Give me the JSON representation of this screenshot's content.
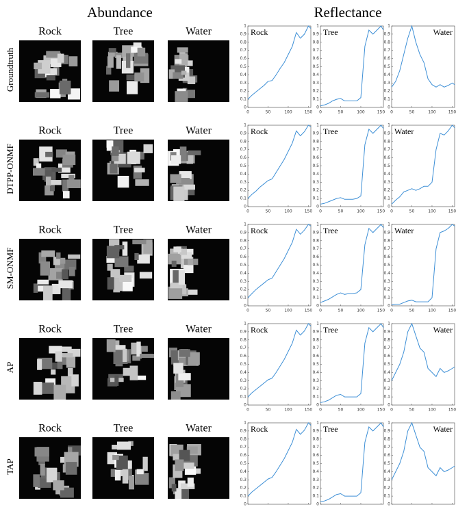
{
  "headers": {
    "abundance": "Abundance",
    "reflectance": "Reflectance"
  },
  "rows": [
    {
      "label": "Groundtruth",
      "abundance_titles": [
        "Rock",
        "Tree",
        "Water"
      ]
    },
    {
      "label": "DTPP-ONMF",
      "abundance_titles": [
        "Rock",
        "Tree",
        "Water"
      ]
    },
    {
      "label": "SM-ONMF",
      "abundance_titles": [
        "Rock",
        "Tree",
        "Water"
      ]
    },
    {
      "label": "AP",
      "abundance_titles": [
        "Rock",
        "Tree",
        "Water"
      ]
    },
    {
      "label": "TAP",
      "abundance_titles": [
        "Rock",
        "Tree",
        "Water"
      ]
    }
  ],
  "chart_data": [
    {
      "type": "line",
      "title": "Rock",
      "color": "#3d8fd6",
      "x": [
        0,
        10,
        20,
        30,
        40,
        50,
        60,
        70,
        80,
        90,
        100,
        110,
        120,
        130,
        140,
        150,
        156
      ],
      "values": [
        0.1,
        0.15,
        0.19,
        0.23,
        0.27,
        0.32,
        0.33,
        0.4,
        0.48,
        0.55,
        0.65,
        0.75,
        0.92,
        0.85,
        0.9,
        1,
        0.97
      ],
      "xlim": [
        0,
        156
      ],
      "ylim": [
        0,
        1
      ],
      "xticks": [
        0,
        50,
        100,
        150
      ],
      "yticks": [
        0,
        0.1,
        0.2,
        0.3,
        0.4,
        0.5,
        0.6,
        0.7,
        0.8,
        0.9,
        1
      ]
    },
    {
      "type": "line",
      "title": "Tree",
      "color": "#3d8fd6",
      "x": [
        0,
        10,
        20,
        30,
        40,
        50,
        60,
        70,
        80,
        90,
        100,
        110,
        120,
        130,
        140,
        150,
        156
      ],
      "values": [
        0.02,
        0.03,
        0.05,
        0.08,
        0.1,
        0.11,
        0.08,
        0.08,
        0.08,
        0.08,
        0.12,
        0.75,
        0.95,
        0.9,
        0.95,
        1,
        0.95
      ],
      "xlim": [
        0,
        156
      ],
      "ylim": [
        0,
        1
      ],
      "xticks": [
        0,
        50,
        100,
        150
      ],
      "yticks": [
        0,
        0.1,
        0.2,
        0.3,
        0.4,
        0.5,
        0.6,
        0.7,
        0.8,
        0.9,
        1
      ]
    },
    {
      "type": "line",
      "title": "Water",
      "color": "#3d8fd6",
      "x": [
        0,
        10,
        20,
        30,
        40,
        50,
        60,
        70,
        80,
        90,
        100,
        110,
        120,
        130,
        140,
        150,
        156
      ],
      "values": [
        0.25,
        0.32,
        0.45,
        0.65,
        0.85,
        1,
        0.8,
        0.65,
        0.55,
        0.35,
        0.28,
        0.25,
        0.28,
        0.25,
        0.27,
        0.3,
        0.28
      ],
      "xlim": [
        0,
        156
      ],
      "ylim": [
        0,
        1
      ],
      "xticks": [
        0,
        50,
        100,
        150
      ],
      "yticks": [
        0,
        0.1,
        0.2,
        0.3,
        0.4,
        0.5,
        0.6,
        0.7,
        0.8,
        0.9,
        1
      ]
    },
    {
      "type": "line",
      "title": "Rock",
      "color": "#3d8fd6",
      "x": [
        0,
        10,
        20,
        30,
        40,
        50,
        60,
        70,
        80,
        90,
        100,
        110,
        120,
        130,
        140,
        150,
        156
      ],
      "values": [
        0.1,
        0.15,
        0.19,
        0.24,
        0.28,
        0.32,
        0.34,
        0.42,
        0.5,
        0.58,
        0.68,
        0.78,
        0.93,
        0.87,
        0.92,
        1,
        0.98
      ],
      "xlim": [
        0,
        156
      ],
      "ylim": [
        0,
        1
      ],
      "xticks": [
        0,
        50,
        100,
        150
      ],
      "yticks": [
        0,
        0.1,
        0.2,
        0.3,
        0.4,
        0.5,
        0.6,
        0.7,
        0.8,
        0.9,
        1
      ]
    },
    {
      "type": "line",
      "title": "Tree",
      "color": "#3d8fd6",
      "x": [
        0,
        10,
        20,
        30,
        40,
        50,
        60,
        70,
        80,
        90,
        100,
        110,
        120,
        130,
        140,
        150,
        156
      ],
      "values": [
        0.03,
        0.04,
        0.06,
        0.08,
        0.1,
        0.11,
        0.09,
        0.09,
        0.09,
        0.1,
        0.13,
        0.76,
        0.95,
        0.9,
        0.95,
        1,
        0.96
      ],
      "xlim": [
        0,
        156
      ],
      "ylim": [
        0,
        1
      ],
      "xticks": [
        0,
        50,
        100,
        150
      ],
      "yticks": [
        0,
        0.1,
        0.2,
        0.3,
        0.4,
        0.5,
        0.6,
        0.7,
        0.8,
        0.9,
        1
      ]
    },
    {
      "type": "line",
      "title": "Water",
      "color": "#3d8fd6",
      "x": [
        0,
        10,
        20,
        30,
        40,
        50,
        60,
        70,
        80,
        90,
        100,
        110,
        120,
        130,
        140,
        150,
        156
      ],
      "values": [
        0.03,
        0.08,
        0.12,
        0.18,
        0.2,
        0.22,
        0.2,
        0.22,
        0.25,
        0.25,
        0.3,
        0.7,
        0.9,
        0.88,
        0.93,
        1,
        0.97
      ],
      "xlim": [
        0,
        156
      ],
      "ylim": [
        0,
        1
      ],
      "xticks": [
        0,
        50,
        100,
        150
      ],
      "yticks": [
        0,
        0.1,
        0.2,
        0.3,
        0.4,
        0.5,
        0.6,
        0.7,
        0.8,
        0.9,
        1
      ]
    },
    {
      "type": "line",
      "title": "Rock",
      "color": "#3d8fd6",
      "x": [
        0,
        10,
        20,
        30,
        40,
        50,
        60,
        70,
        80,
        90,
        100,
        110,
        120,
        130,
        140,
        150,
        156
      ],
      "values": [
        0.1,
        0.15,
        0.2,
        0.24,
        0.28,
        0.32,
        0.34,
        0.42,
        0.5,
        0.58,
        0.68,
        0.78,
        0.94,
        0.88,
        0.93,
        1,
        0.98
      ],
      "xlim": [
        0,
        156
      ],
      "ylim": [
        0,
        1
      ],
      "xticks": [
        0,
        50,
        100,
        150
      ],
      "yticks": [
        0,
        0.1,
        0.2,
        0.3,
        0.4,
        0.5,
        0.6,
        0.7,
        0.8,
        0.9,
        1
      ]
    },
    {
      "type": "line",
      "title": "Tree",
      "color": "#3d8fd6",
      "x": [
        0,
        10,
        20,
        30,
        40,
        50,
        60,
        70,
        80,
        90,
        100,
        110,
        120,
        130,
        140,
        150,
        156
      ],
      "values": [
        0.04,
        0.06,
        0.08,
        0.11,
        0.14,
        0.16,
        0.14,
        0.15,
        0.15,
        0.16,
        0.2,
        0.75,
        0.95,
        0.9,
        0.95,
        1,
        0.96
      ],
      "xlim": [
        0,
        156
      ],
      "ylim": [
        0,
        1
      ],
      "xticks": [
        0,
        50,
        100,
        150
      ],
      "yticks": [
        0,
        0.1,
        0.2,
        0.3,
        0.4,
        0.5,
        0.6,
        0.7,
        0.8,
        0.9,
        1
      ]
    },
    {
      "type": "line",
      "title": "Water",
      "color": "#3d8fd6",
      "x": [
        0,
        10,
        20,
        30,
        40,
        50,
        60,
        70,
        80,
        90,
        100,
        110,
        120,
        130,
        140,
        150,
        156
      ],
      "values": [
        0.01,
        0.02,
        0.02,
        0.04,
        0.06,
        0.07,
        0.05,
        0.05,
        0.05,
        0.05,
        0.1,
        0.7,
        0.9,
        0.92,
        0.95,
        1,
        0.98
      ],
      "xlim": [
        0,
        156
      ],
      "ylim": [
        0,
        1
      ],
      "xticks": [
        0,
        50,
        100,
        150
      ],
      "yticks": [
        0,
        0.1,
        0.2,
        0.3,
        0.4,
        0.5,
        0.6,
        0.7,
        0.8,
        0.9,
        1
      ]
    },
    {
      "type": "line",
      "title": "Rock",
      "color": "#3d8fd6",
      "x": [
        0,
        10,
        20,
        30,
        40,
        50,
        60,
        70,
        80,
        90,
        100,
        110,
        120,
        130,
        140,
        150,
        156
      ],
      "values": [
        0.1,
        0.15,
        0.19,
        0.23,
        0.27,
        0.31,
        0.33,
        0.4,
        0.48,
        0.56,
        0.66,
        0.76,
        0.92,
        0.86,
        0.91,
        1,
        0.97
      ],
      "xlim": [
        0,
        156
      ],
      "ylim": [
        0,
        1
      ],
      "xticks": [
        0,
        50,
        100,
        150
      ],
      "yticks": [
        0,
        0.1,
        0.2,
        0.3,
        0.4,
        0.5,
        0.6,
        0.7,
        0.8,
        0.9,
        1
      ]
    },
    {
      "type": "line",
      "title": "Tree",
      "color": "#3d8fd6",
      "x": [
        0,
        10,
        20,
        30,
        40,
        50,
        60,
        70,
        80,
        90,
        100,
        110,
        120,
        130,
        140,
        150,
        156
      ],
      "values": [
        0.03,
        0.04,
        0.06,
        0.09,
        0.12,
        0.13,
        0.1,
        0.1,
        0.1,
        0.1,
        0.14,
        0.76,
        0.95,
        0.9,
        0.95,
        1,
        0.95
      ],
      "xlim": [
        0,
        156
      ],
      "ylim": [
        0,
        1
      ],
      "xticks": [
        0,
        50,
        100,
        150
      ],
      "yticks": [
        0,
        0.1,
        0.2,
        0.3,
        0.4,
        0.5,
        0.6,
        0.7,
        0.8,
        0.9,
        1
      ]
    },
    {
      "type": "line",
      "title": "Water",
      "color": "#3d8fd6",
      "x": [
        0,
        10,
        20,
        30,
        40,
        50,
        60,
        70,
        80,
        90,
        100,
        110,
        120,
        130,
        140,
        150,
        156
      ],
      "values": [
        0.3,
        0.4,
        0.5,
        0.65,
        0.9,
        1,
        0.85,
        0.7,
        0.65,
        0.45,
        0.4,
        0.35,
        0.45,
        0.4,
        0.42,
        0.45,
        0.47
      ],
      "xlim": [
        0,
        156
      ],
      "ylim": [
        0,
        1
      ],
      "xticks": [
        0,
        50,
        100,
        150
      ],
      "yticks": [
        0,
        0.1,
        0.2,
        0.3,
        0.4,
        0.5,
        0.6,
        0.7,
        0.8,
        0.9,
        1
      ]
    },
    {
      "type": "line",
      "title": "Rock",
      "color": "#3d8fd6",
      "x": [
        0,
        10,
        20,
        30,
        40,
        50,
        60,
        70,
        80,
        90,
        100,
        110,
        120,
        130,
        140,
        150,
        156
      ],
      "values": [
        0.1,
        0.15,
        0.19,
        0.23,
        0.27,
        0.31,
        0.33,
        0.4,
        0.48,
        0.56,
        0.66,
        0.76,
        0.92,
        0.86,
        0.91,
        1,
        0.97
      ],
      "xlim": [
        0,
        156
      ],
      "ylim": [
        0,
        1
      ],
      "xticks": [
        0,
        50,
        100,
        150
      ],
      "yticks": [
        0,
        0.1,
        0.2,
        0.3,
        0.4,
        0.5,
        0.6,
        0.7,
        0.8,
        0.9,
        1
      ]
    },
    {
      "type": "line",
      "title": "Tree",
      "color": "#3d8fd6",
      "x": [
        0,
        10,
        20,
        30,
        40,
        50,
        60,
        70,
        80,
        90,
        100,
        110,
        120,
        130,
        140,
        150,
        156
      ],
      "values": [
        0.03,
        0.04,
        0.06,
        0.09,
        0.12,
        0.13,
        0.1,
        0.1,
        0.1,
        0.1,
        0.14,
        0.76,
        0.95,
        0.9,
        0.95,
        1,
        0.95
      ],
      "xlim": [
        0,
        156
      ],
      "ylim": [
        0,
        1
      ],
      "xticks": [
        0,
        50,
        100,
        150
      ],
      "yticks": [
        0,
        0.1,
        0.2,
        0.3,
        0.4,
        0.5,
        0.6,
        0.7,
        0.8,
        0.9,
        1
      ]
    },
    {
      "type": "line",
      "title": "Water",
      "color": "#3d8fd6",
      "x": [
        0,
        10,
        20,
        30,
        40,
        50,
        60,
        70,
        80,
        90,
        100,
        110,
        120,
        130,
        140,
        150,
        156
      ],
      "values": [
        0.3,
        0.4,
        0.5,
        0.65,
        0.9,
        1,
        0.85,
        0.7,
        0.65,
        0.45,
        0.4,
        0.35,
        0.45,
        0.4,
        0.42,
        0.45,
        0.47
      ],
      "xlim": [
        0,
        156
      ],
      "ylim": [
        0,
        1
      ],
      "xticks": [
        0,
        50,
        100,
        150
      ],
      "yticks": [
        0,
        0.1,
        0.2,
        0.3,
        0.4,
        0.5,
        0.6,
        0.7,
        0.8,
        0.9,
        1
      ]
    }
  ]
}
